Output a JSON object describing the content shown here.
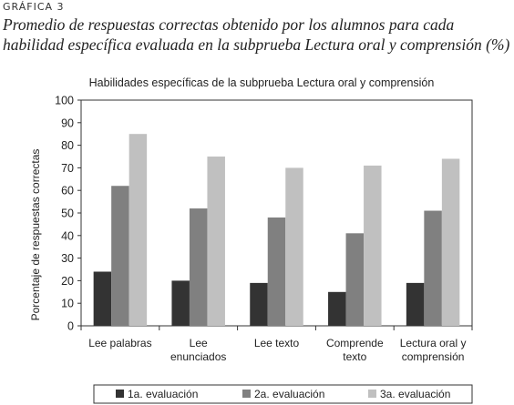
{
  "figure": {
    "label": "GRÁFICA 3",
    "caption_lines": [
      "Promedio de respuestas correctas obtenido por los alumnos para cada",
      "habilidad específica evaluada en la subprueba Lectura oral y comprensión (%)"
    ]
  },
  "chart_data": {
    "type": "bar",
    "title": "Habilidades específicas de la subprueba Lectura oral y comprensión",
    "ylabel": "Porcentaje de respuestas correctas",
    "xlabel": "",
    "ylim": [
      0,
      100
    ],
    "yticks": [
      0,
      10,
      20,
      30,
      40,
      50,
      60,
      70,
      80,
      90,
      100
    ],
    "grid": false,
    "legend_position": "bottom",
    "categories": [
      [
        "Lee palabras"
      ],
      [
        "Lee",
        "enunciados"
      ],
      [
        "Lee texto"
      ],
      [
        "Comprende",
        "texto"
      ],
      [
        "Lectura oral y",
        "comprensión"
      ]
    ],
    "series": [
      {
        "name": "1a. evaluación",
        "color": "#333333",
        "values": [
          24,
          20,
          19,
          15,
          19
        ]
      },
      {
        "name": "2a. evaluación",
        "color": "#808080",
        "values": [
          62,
          52,
          48,
          41,
          51
        ]
      },
      {
        "name": "3a. evaluación",
        "color": "#c0c0c0",
        "values": [
          85,
          75,
          70,
          71,
          74
        ]
      }
    ]
  }
}
